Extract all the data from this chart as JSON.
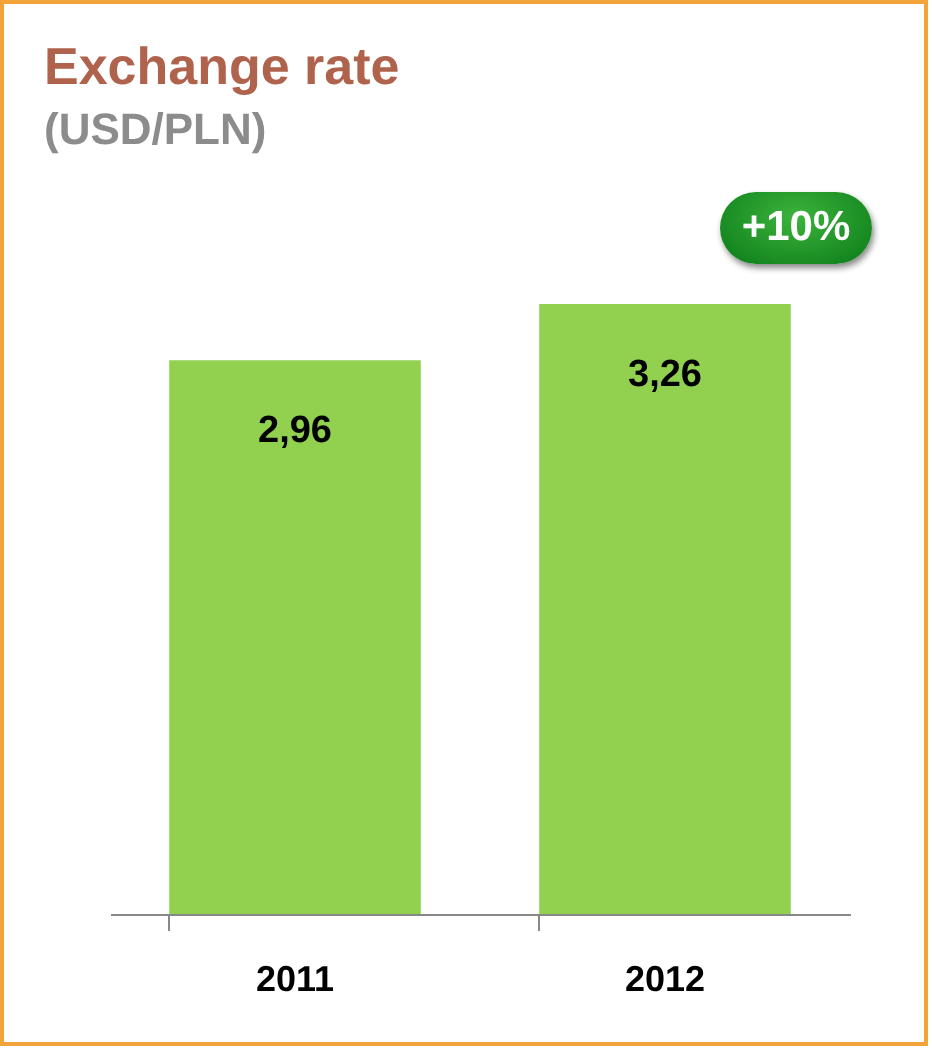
{
  "chart_data": {
    "type": "bar",
    "title": "Exchange rate",
    "subtitle": "(USD/PLN)",
    "categories": [
      "2011",
      "2012"
    ],
    "values": [
      2.96,
      3.26
    ],
    "value_labels": [
      "2,96",
      "3,26"
    ],
    "color": "#92d050",
    "annotations": [
      "+10%"
    ]
  }
}
